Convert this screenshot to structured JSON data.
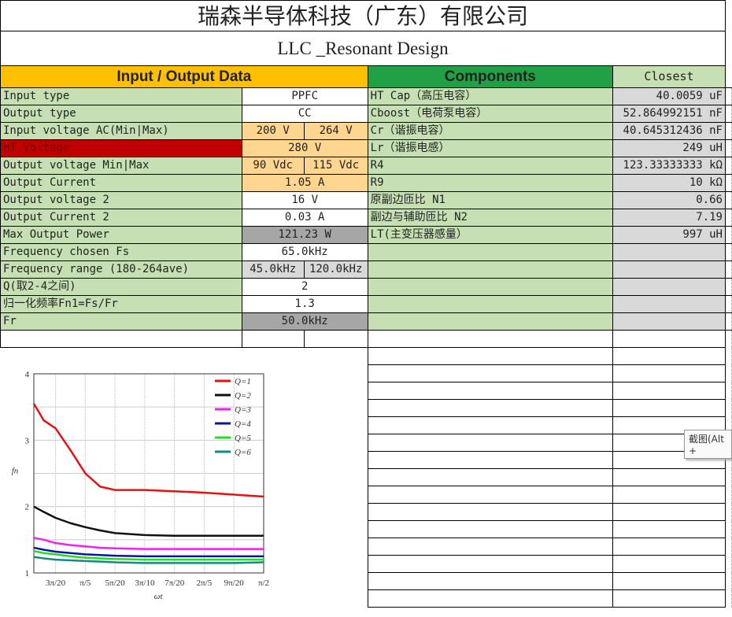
{
  "title": "瑞森半导体科技（广东）有限公司",
  "subtitle": "LLC _Resonant Design",
  "headers": {
    "io": "Input / Output Data",
    "components": "Components",
    "closest": "Closest"
  },
  "colors": {
    "label_green": "#c6e0b4",
    "io_header": "#ffc000",
    "components_header": "#21a046",
    "input_fill": "#ffd68f",
    "alert_red": "#c00000",
    "computed_grey": "#a6a6a6",
    "value_grey": "#d9d9d9"
  },
  "io_rows": [
    {
      "label": "Input type",
      "values": [
        "PPFC"
      ],
      "fill": "w"
    },
    {
      "label": "Output type",
      "values": [
        "CC"
      ],
      "fill": "w"
    },
    {
      "label": "Input voltage AC(Min|Max)",
      "values": [
        "200 V",
        "264 V"
      ],
      "fill": "o"
    },
    {
      "label": "HT Voltage",
      "values": [
        "280 V"
      ],
      "fill": "o",
      "label_fill": "r"
    },
    {
      "label": "Output voltage Min|Max",
      "values": [
        "90 Vdc",
        "115 Vdc"
      ],
      "fill": "o"
    },
    {
      "label": "Output Current",
      "values": [
        "1.05 A"
      ],
      "fill": "o"
    },
    {
      "label": "Output voltage 2",
      "values": [
        "16 V"
      ],
      "fill": "w"
    },
    {
      "label": "Output Current 2",
      "values": [
        "0.03 A"
      ],
      "fill": "w"
    },
    {
      "label": "Max Output Power",
      "values": [
        "121.23 W"
      ],
      "fill": "dg"
    },
    {
      "label": "Frequency chosen Fs",
      "values": [
        "65.0kHz"
      ],
      "fill": "w"
    },
    {
      "label": "Frequency range (180-264ave)",
      "values": [
        "45.0kHz",
        "120.0kHz"
      ],
      "fill": "lg"
    },
    {
      "label": "Q(取2-4之间)",
      "values": [
        "2"
      ],
      "fill": "w"
    },
    {
      "label": "归一化频率Fn1=Fs/Fr",
      "values": [
        "1.3"
      ],
      "fill": "w"
    },
    {
      "label": "Fr",
      "values": [
        "50.0kHz"
      ],
      "fill": "dg"
    }
  ],
  "component_rows": [
    {
      "label": "HT Cap（高压电容）",
      "value": "40.0059 uF"
    },
    {
      "label": "Cboost（电荷泵电容）",
      "value": "52.864992151 nF"
    },
    {
      "label": "Cr（谐振电容）",
      "value": "40.645312436 nF"
    },
    {
      "label": "Lr（谐振电感）",
      "value": "249 uH"
    },
    {
      "label": "R4",
      "value": "123.33333333 kΩ"
    },
    {
      "label": "R9",
      "value": "10 kΩ"
    },
    {
      "label": "原副边匝比 N1",
      "value": "0.66"
    },
    {
      "label": "副边与辅助匝比 N2",
      "value": "7.19"
    },
    {
      "label": "LT(主变压器感量）",
      "value": "997 uH"
    },
    {
      "label": "",
      "value": ""
    },
    {
      "label": "",
      "value": ""
    },
    {
      "label": "",
      "value": ""
    },
    {
      "label": "",
      "value": ""
    },
    {
      "label": "",
      "value": ""
    }
  ],
  "tooltip": "截图(Alt +",
  "chart_data": {
    "type": "line",
    "xlabel": "ωt",
    "ylabel": "fn",
    "x_unit_note": "π/20",
    "x": [
      2.27,
      2.6,
      3,
      3.5,
      4,
      4.5,
      5,
      6,
      7,
      8,
      9,
      10
    ],
    "xlim": [
      2.27,
      10
    ],
    "ylim": [
      1,
      4
    ],
    "xticks": [
      {
        "v": 3,
        "label": "3π/20"
      },
      {
        "v": 4,
        "label": "π/5"
      },
      {
        "v": 5,
        "label": "5π/20"
      },
      {
        "v": 6,
        "label": "3π/10"
      },
      {
        "v": 7,
        "label": "7π/20"
      },
      {
        "v": 8,
        "label": "2π/5"
      },
      {
        "v": 9,
        "label": "9π/20"
      },
      {
        "v": 10,
        "label": "π/2"
      }
    ],
    "yticks": [
      1,
      2,
      3,
      4
    ],
    "grid": true,
    "legend": "top-right",
    "series": [
      {
        "name": "Q=1",
        "color": "#e81010",
        "values": [
          3.55,
          3.3,
          3.18,
          2.85,
          2.5,
          2.3,
          2.25,
          2.25,
          2.23,
          2.21,
          2.18,
          2.15
        ]
      },
      {
        "name": "Q=2",
        "color": "#111111",
        "values": [
          2.0,
          1.92,
          1.83,
          1.75,
          1.69,
          1.64,
          1.6,
          1.57,
          1.56,
          1.56,
          1.56,
          1.56
        ]
      },
      {
        "name": "Q=3",
        "color": "#ee22ee",
        "values": [
          1.53,
          1.5,
          1.45,
          1.42,
          1.4,
          1.38,
          1.37,
          1.36,
          1.36,
          1.36,
          1.36,
          1.36
        ]
      },
      {
        "name": "Q=4",
        "color": "#0a14a0",
        "values": [
          1.38,
          1.35,
          1.32,
          1.3,
          1.28,
          1.27,
          1.26,
          1.25,
          1.25,
          1.25,
          1.25,
          1.25
        ]
      },
      {
        "name": "Q=5",
        "color": "#22dd22",
        "values": [
          1.33,
          1.3,
          1.28,
          1.25,
          1.23,
          1.22,
          1.21,
          1.2,
          1.2,
          1.2,
          1.2,
          1.2
        ]
      },
      {
        "name": "Q=6",
        "color": "#138a82",
        "values": [
          1.24,
          1.22,
          1.2,
          1.19,
          1.18,
          1.17,
          1.16,
          1.15,
          1.15,
          1.15,
          1.15,
          1.16
        ]
      }
    ]
  }
}
